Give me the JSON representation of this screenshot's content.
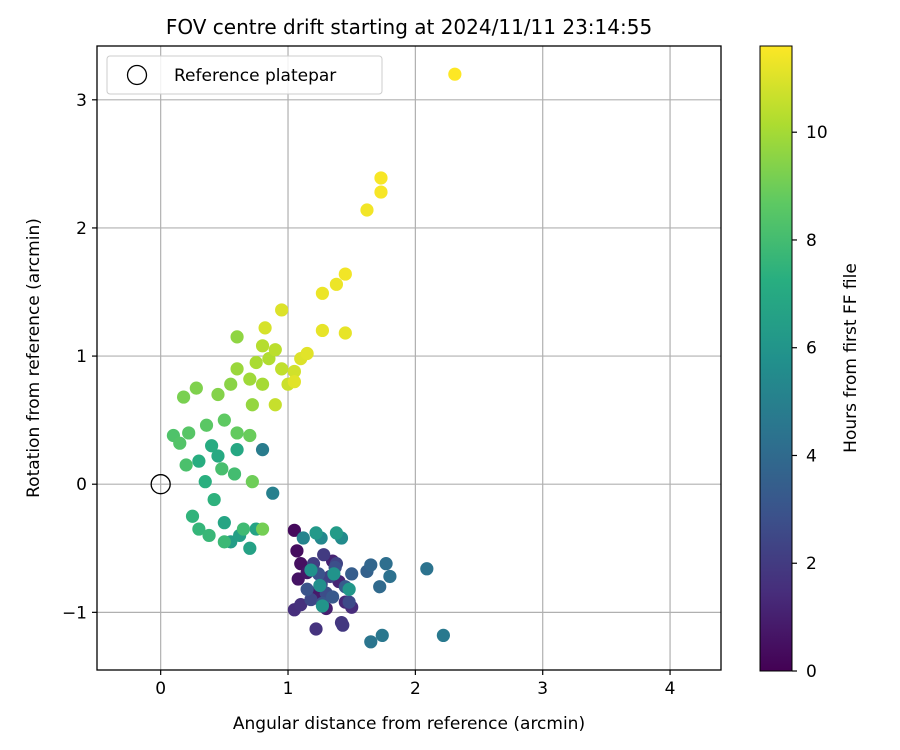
{
  "chart_data": {
    "type": "scatter",
    "title": "FOV centre drift starting at 2024/11/11 23:14:55",
    "xlabel": "Angular distance from reference (arcmin)",
    "ylabel": "Rotation from reference (arcmin)",
    "xlim": [
      -0.5,
      4.4
    ],
    "ylim": [
      -1.45,
      3.42
    ],
    "xticks": [
      0,
      1,
      2,
      3,
      4
    ],
    "yticks": [
      -1,
      0,
      1,
      2,
      3
    ],
    "xtick_labels": [
      "0",
      "1",
      "2",
      "3",
      "4"
    ],
    "ytick_labels": [
      "−1",
      "0",
      "1",
      "2",
      "3"
    ],
    "grid": true,
    "legend": {
      "position": "upper-left",
      "entries": [
        {
          "label": "Reference platepar",
          "marker": "open-circle"
        }
      ]
    },
    "reference_point": {
      "x": 0,
      "y": 0
    },
    "colorbar": {
      "label": "Hours from first FF file",
      "colormap": "viridis",
      "range": [
        0,
        11.6
      ],
      "ticks": [
        0,
        2,
        4,
        6,
        8,
        10
      ],
      "tick_labels": [
        "0",
        "2",
        "4",
        "6",
        "8",
        "10"
      ]
    },
    "points": [
      [
        1.05,
        -0.36,
        0.3
      ],
      [
        1.07,
        -0.52,
        0.4
      ],
      [
        1.1,
        -0.62,
        0.5
      ],
      [
        1.08,
        -0.74,
        0.6
      ],
      [
        1.15,
        -0.69,
        0.7
      ],
      [
        1.2,
        -0.85,
        0.8
      ],
      [
        1.25,
        -0.9,
        0.9
      ],
      [
        1.3,
        -0.97,
        1.0
      ],
      [
        1.35,
        -0.6,
        1.1
      ],
      [
        1.4,
        -0.76,
        1.2
      ],
      [
        1.45,
        -0.92,
        1.3
      ],
      [
        1.5,
        -0.96,
        1.4
      ],
      [
        1.05,
        -0.98,
        1.5
      ],
      [
        1.1,
        -0.94,
        1.6
      ],
      [
        1.22,
        -1.13,
        1.7
      ],
      [
        1.42,
        -1.08,
        1.8
      ],
      [
        1.43,
        -1.1,
        1.9
      ],
      [
        1.28,
        -0.55,
        2.0
      ],
      [
        1.2,
        -0.62,
        2.1
      ],
      [
        1.33,
        -0.72,
        2.2
      ],
      [
        1.38,
        -0.62,
        2.3
      ],
      [
        1.26,
        -0.78,
        2.4
      ],
      [
        1.18,
        -0.9,
        2.5
      ],
      [
        1.48,
        -0.92,
        2.6
      ],
      [
        1.3,
        -0.85,
        2.7
      ],
      [
        1.37,
        -0.65,
        2.8
      ],
      [
        1.24,
        -0.7,
        2.9
      ],
      [
        1.15,
        -0.82,
        3.0
      ],
      [
        1.27,
        -0.93,
        3.1
      ],
      [
        1.35,
        -0.88,
        3.2
      ],
      [
        1.45,
        -0.8,
        3.3
      ],
      [
        1.5,
        -0.7,
        3.4
      ],
      [
        1.62,
        -0.68,
        3.6
      ],
      [
        1.65,
        -0.63,
        3.8
      ],
      [
        1.72,
        -0.8,
        4.0
      ],
      [
        1.77,
        -0.62,
        4.2
      ],
      [
        1.8,
        -0.72,
        4.3
      ],
      [
        2.09,
        -0.66,
        4.4
      ],
      [
        1.65,
        -1.23,
        4.5
      ],
      [
        1.74,
        -1.18,
        4.6
      ],
      [
        2.22,
        -1.18,
        4.7
      ],
      [
        0.8,
        0.27,
        4.8
      ],
      [
        0.88,
        -0.07,
        5.0
      ],
      [
        1.12,
        -0.42,
        5.2
      ],
      [
        1.26,
        -0.42,
        5.4
      ],
      [
        1.42,
        -0.42,
        5.5
      ],
      [
        1.25,
        -0.79,
        5.7
      ],
      [
        1.18,
        -0.67,
        5.8
      ],
      [
        1.36,
        -0.7,
        5.9
      ],
      [
        1.27,
        -0.95,
        6.0
      ],
      [
        1.48,
        -0.82,
        6.1
      ],
      [
        1.22,
        -0.38,
        6.2
      ],
      [
        1.38,
        -0.38,
        6.3
      ],
      [
        0.55,
        -0.45,
        6.4
      ],
      [
        0.62,
        -0.4,
        6.5
      ],
      [
        0.7,
        -0.5,
        6.6
      ],
      [
        0.75,
        -0.35,
        6.7
      ],
      [
        0.5,
        -0.3,
        6.8
      ],
      [
        0.6,
        0.27,
        6.9
      ],
      [
        0.45,
        0.22,
        7.0
      ],
      [
        0.4,
        0.3,
        7.1
      ],
      [
        0.3,
        0.18,
        7.2
      ],
      [
        0.35,
        0.02,
        7.3
      ],
      [
        0.42,
        -0.12,
        7.4
      ],
      [
        0.25,
        -0.25,
        7.5
      ],
      [
        0.3,
        -0.35,
        7.6
      ],
      [
        0.38,
        -0.4,
        7.7
      ],
      [
        0.5,
        -0.45,
        7.8
      ],
      [
        0.65,
        -0.35,
        7.9
      ],
      [
        0.58,
        0.08,
        8.0
      ],
      [
        0.48,
        0.12,
        8.1
      ],
      [
        0.2,
        0.15,
        8.2
      ],
      [
        0.1,
        0.38,
        8.3
      ],
      [
        0.15,
        0.32,
        8.4
      ],
      [
        0.22,
        0.4,
        8.5
      ],
      [
        0.36,
        0.46,
        8.6
      ],
      [
        0.5,
        0.5,
        8.7
      ],
      [
        0.6,
        0.4,
        8.8
      ],
      [
        0.7,
        0.38,
        8.9
      ],
      [
        0.72,
        0.02,
        9.0
      ],
      [
        0.8,
        -0.35,
        9.1
      ],
      [
        0.18,
        0.68,
        9.2
      ],
      [
        0.28,
        0.75,
        9.3
      ],
      [
        0.45,
        0.7,
        9.4
      ],
      [
        0.55,
        0.78,
        9.5
      ],
      [
        0.6,
        1.15,
        9.6
      ],
      [
        0.72,
        0.62,
        9.7
      ],
      [
        0.6,
        0.9,
        9.8
      ],
      [
        0.7,
        0.82,
        9.9
      ],
      [
        0.8,
        0.78,
        10.0
      ],
      [
        0.75,
        0.95,
        10.1
      ],
      [
        0.85,
        0.98,
        10.2
      ],
      [
        0.8,
        1.08,
        10.3
      ],
      [
        0.9,
        1.05,
        10.4
      ],
      [
        0.95,
        0.9,
        10.5
      ],
      [
        0.9,
        0.62,
        10.6
      ],
      [
        1.0,
        0.78,
        10.7
      ],
      [
        1.05,
        0.88,
        10.8
      ],
      [
        0.82,
        1.22,
        10.9
      ],
      [
        0.95,
        1.36,
        11.0
      ],
      [
        1.1,
        0.98,
        11.0
      ],
      [
        1.05,
        0.8,
        11.1
      ],
      [
        1.15,
        1.02,
        11.1
      ],
      [
        1.27,
        1.2,
        11.2
      ],
      [
        1.45,
        1.18,
        11.2
      ],
      [
        1.27,
        1.49,
        11.3
      ],
      [
        1.38,
        1.56,
        11.3
      ],
      [
        1.45,
        1.64,
        11.4
      ],
      [
        1.62,
        2.14,
        11.4
      ],
      [
        1.73,
        2.28,
        11.5
      ],
      [
        1.73,
        2.39,
        11.5
      ],
      [
        2.31,
        3.2,
        11.6
      ]
    ]
  }
}
